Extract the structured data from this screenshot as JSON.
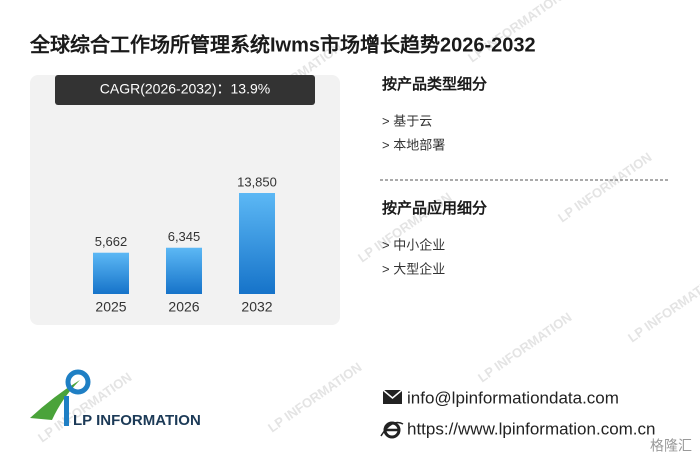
{
  "title": "全球综合工作场所管理系统Iwms市场增长趋势2026-2032",
  "cagr_label": "CAGR(2026-2032)：13.9%",
  "chart_data": {
    "type": "bar",
    "categories": [
      "2025",
      "2026",
      "2032"
    ],
    "values": [
      5662,
      6345,
      13850
    ],
    "value_labels": [
      "5,662",
      "6,345",
      "13,850"
    ],
    "color": "#2e8fe0"
  },
  "segments": [
    {
      "heading": "按产品类型细分",
      "items": [
        "> 基于云",
        "> 本地部署"
      ]
    },
    {
      "heading": "按产品应用细分",
      "items": [
        "> 中小企业",
        "> 大型企业"
      ]
    }
  ],
  "logo_text": "LP INFORMATION",
  "contact": {
    "email": "info@lpinformationdata.com",
    "website": "https://www.lpinformation.com.cn"
  },
  "watermark": "LP INFORMATION",
  "corner_mark": "格隆汇"
}
